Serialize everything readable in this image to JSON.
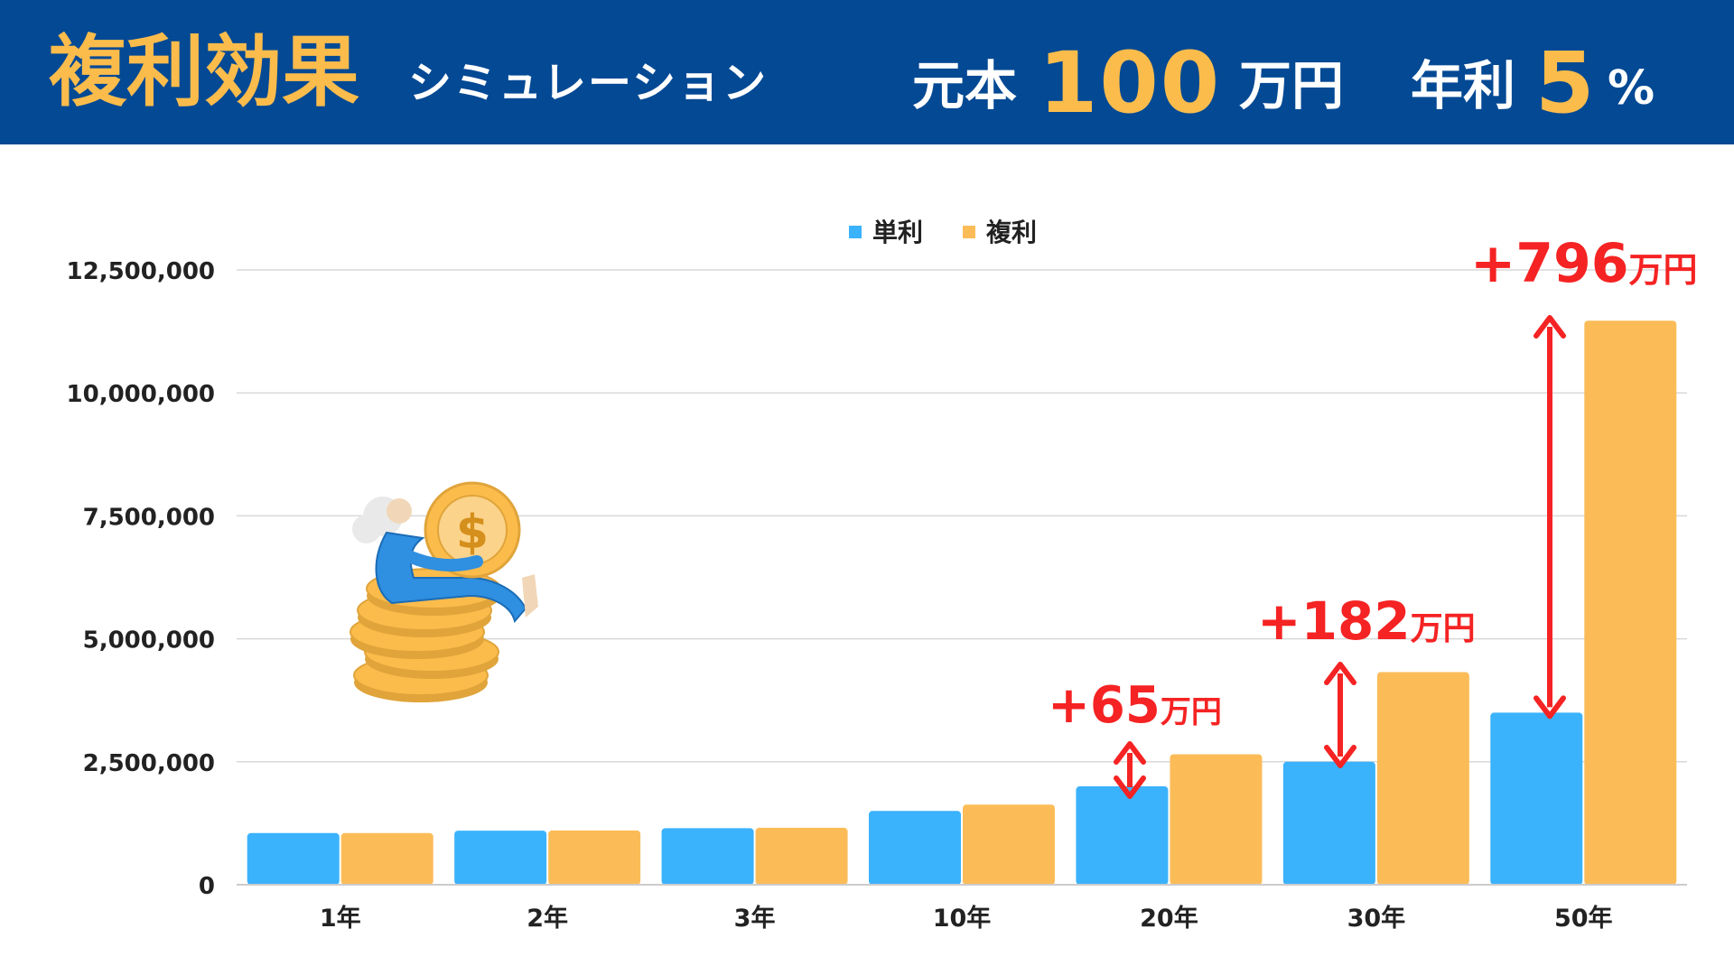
{
  "header": {
    "title_main": "複利効果",
    "title_sub": "シミュレーション",
    "principal_label": "元本",
    "principal_value": "100",
    "principal_unit": "万円",
    "rate_label": "年利",
    "rate_value": "5",
    "rate_unit": "%"
  },
  "colors": {
    "header_bg": "#034994",
    "accent_gold": "#fbbc4c",
    "simple": "#3bb2fc",
    "compound": "#fbbc58",
    "annotation_red": "#f52323",
    "grid": "#d9d9d9"
  },
  "illustration": {
    "icon": "person-holding-dollar-coin-illustration",
    "symbol": "$"
  },
  "chart_data": {
    "type": "bar",
    "categories": [
      "1年",
      "2年",
      "3年",
      "10年",
      "20年",
      "30年",
      "50年"
    ],
    "series": [
      {
        "name": "単利",
        "values": [
          1050000,
          1100000,
          1150000,
          1500000,
          2000000,
          2500000,
          3500000
        ]
      },
      {
        "name": "複利",
        "values": [
          1050000,
          1102500,
          1157625,
          1628895,
          2653298,
          4321942,
          11467400
        ]
      }
    ],
    "ylim": [
      0,
      12500000
    ],
    "yticks": [
      0,
      2500000,
      5000000,
      7500000,
      10000000,
      12500000
    ],
    "ytick_labels": [
      "0",
      "2,500,000",
      "5,000,000",
      "7,500,000",
      "10,000,000",
      "12,500,000"
    ],
    "legend_position": "top",
    "grid": true,
    "annotations": [
      {
        "category": "20年",
        "amount": "+65",
        "unit": "万円"
      },
      {
        "category": "30年",
        "amount": "+182",
        "unit": "万円"
      },
      {
        "category": "50年",
        "amount": "+796",
        "unit": "万円"
      }
    ]
  }
}
